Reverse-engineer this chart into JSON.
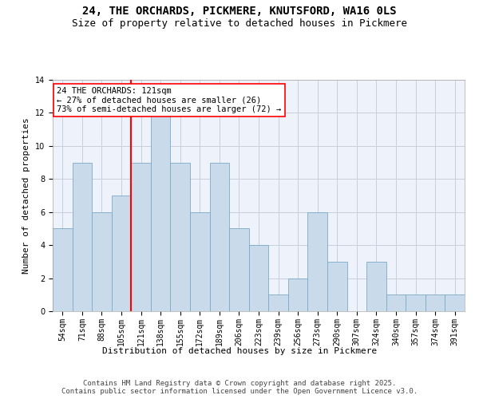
{
  "title": "24, THE ORCHARDS, PICKMERE, KNUTSFORD, WA16 0LS",
  "subtitle": "Size of property relative to detached houses in Pickmere",
  "xlabel": "Distribution of detached houses by size in Pickmere",
  "ylabel": "Number of detached properties",
  "footer_line1": "Contains HM Land Registry data © Crown copyright and database right 2025.",
  "footer_line2": "Contains public sector information licensed under the Open Government Licence v3.0.",
  "bin_labels": [
    "54sqm",
    "71sqm",
    "88sqm",
    "105sqm",
    "121sqm",
    "138sqm",
    "155sqm",
    "172sqm",
    "189sqm",
    "206sqm",
    "223sqm",
    "239sqm",
    "256sqm",
    "273sqm",
    "290sqm",
    "307sqm",
    "324sqm",
    "340sqm",
    "357sqm",
    "374sqm",
    "391sqm"
  ],
  "values": [
    5,
    9,
    6,
    7,
    9,
    12,
    9,
    6,
    9,
    5,
    4,
    1,
    2,
    6,
    3,
    0,
    3,
    1,
    1,
    1,
    1
  ],
  "bar_color": "#c9daea",
  "bar_edge_color": "#7aaac8",
  "highlight_index": 4,
  "annotation_text": "24 THE ORCHARDS: 121sqm\n← 27% of detached houses are smaller (26)\n73% of semi-detached houses are larger (72) →",
  "ylim": [
    0,
    14
  ],
  "yticks": [
    0,
    2,
    4,
    6,
    8,
    10,
    12,
    14
  ],
  "background_color": "#eef2fa",
  "grid_color": "#c8cedc",
  "title_fontsize": 10,
  "subtitle_fontsize": 9,
  "axis_label_fontsize": 8,
  "tick_fontsize": 7,
  "annotation_fontsize": 7.5,
  "footer_fontsize": 6.5
}
